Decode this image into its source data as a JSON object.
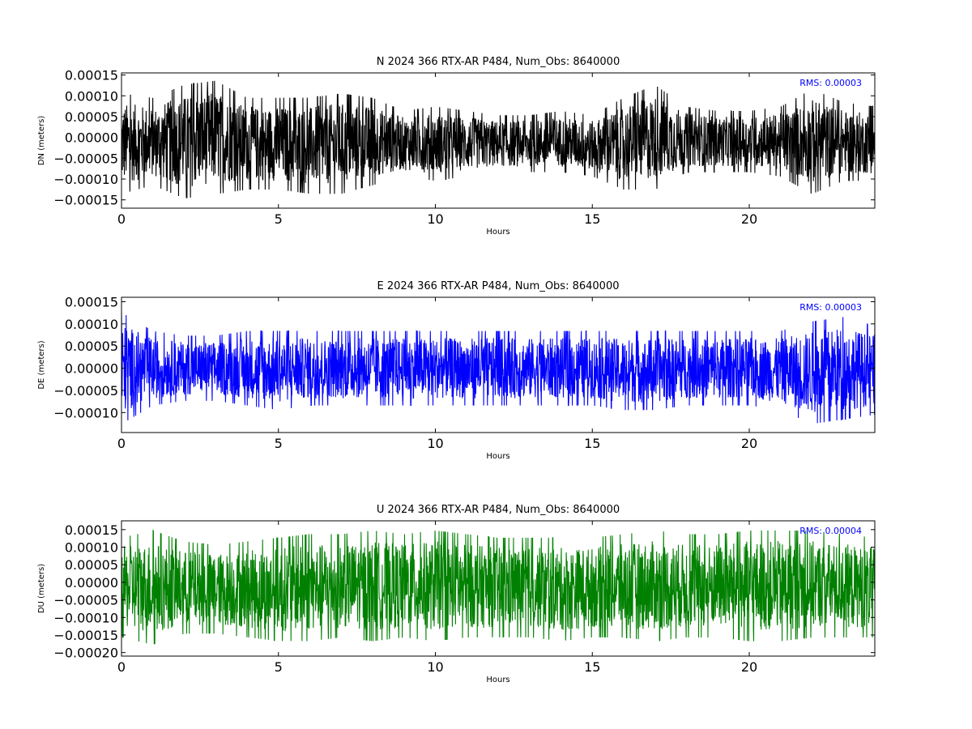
{
  "chart_data": [
    {
      "type": "line",
      "title": "N 2024 366 RTX-AR  P484, Num_Obs: 8640000",
      "xlabel": "Hours",
      "ylabel": "DN (meters)",
      "xlim": [
        0,
        24
      ],
      "ylim": [
        -0.00017,
        0.000155
      ],
      "xticks": [
        0,
        5,
        10,
        15,
        20
      ],
      "yticks": [
        -0.00015,
        -0.0001,
        -5e-05,
        0.0,
        5e-05,
        0.0001,
        0.00015
      ],
      "ytick_labels": [
        "−0.00015",
        "−0.00010",
        "−0.00005",
        "0.00000",
        "0.00005",
        "0.00010",
        "0.00015"
      ],
      "color": "#000000",
      "annotation": "RMS:  0.00003",
      "annotation_color": "#0000ff",
      "series": [
        {
          "x": [
            0,
            1,
            2,
            3,
            4,
            5,
            6,
            7,
            8,
            9,
            10,
            11,
            12,
            13,
            14,
            15,
            16,
            17,
            18,
            19,
            20,
            21,
            22,
            23,
            24
          ],
          "upper": [
            0.0001,
            9e-05,
            0.00012,
            0.00013,
            9e-05,
            9e-05,
            9e-05,
            0.0001,
            9e-05,
            6e-05,
            7e-05,
            6e-05,
            5e-05,
            5e-05,
            6e-05,
            5e-05,
            9e-05,
            0.00012,
            7e-05,
            6e-05,
            6e-05,
            7e-05,
            0.00011,
            8e-05,
            7e-05
          ],
          "lower": [
            -0.00013,
            -0.00011,
            -0.00014,
            -0.00013,
            -0.00012,
            -0.00012,
            -0.00013,
            -0.00013,
            -0.00011,
            -9e-05,
            -0.0001,
            -9e-05,
            -8e-05,
            -8e-05,
            -8e-05,
            -9e-05,
            -0.00012,
            -0.00012,
            -8e-05,
            -8e-05,
            -8e-05,
            -9e-05,
            -0.00013,
            -0.0001,
            -0.0001
          ]
        }
      ]
    },
    {
      "type": "line",
      "title": "E 2024 366 RTX-AR  P484, Num_Obs: 8640000",
      "xlabel": "Hours",
      "ylabel": "DE (meters)",
      "xlim": [
        0,
        24
      ],
      "ylim": [
        -0.000145,
        0.00016
      ],
      "xticks": [
        0,
        5,
        10,
        15,
        20
      ],
      "yticks": [
        -0.0001,
        -5e-05,
        0.0,
        5e-05,
        0.0001,
        0.00015
      ],
      "ytick_labels": [
        "−0.00010",
        "−0.00005",
        "0.00000",
        "0.00005",
        "0.00010",
        "0.00015"
      ],
      "color": "#0000ff",
      "annotation": "RMS:  0.00003",
      "annotation_color": "#0000ff",
      "series": [
        {
          "x": [
            0,
            1,
            2,
            3,
            4,
            5,
            6,
            7,
            8,
            9,
            10,
            11,
            12,
            13,
            14,
            15,
            16,
            17,
            18,
            19,
            20,
            21,
            22,
            23,
            24
          ],
          "upper": [
            0.00012,
            8e-05,
            7e-05,
            7e-05,
            8e-05,
            8e-05,
            8e-05,
            8e-05,
            8e-05,
            8e-05,
            8e-05,
            8e-05,
            8e-05,
            8e-05,
            8e-05,
            8e-05,
            8e-05,
            8e-05,
            8e-05,
            8e-05,
            8e-05,
            8e-05,
            0.0001,
            0.00011,
            9e-05
          ],
          "lower": [
            -0.00012,
            -8e-05,
            -7e-05,
            -7e-05,
            -8e-05,
            -9e-05,
            -8e-05,
            -8e-05,
            -8e-05,
            -8e-05,
            -8e-05,
            -8e-05,
            -8e-05,
            -8e-05,
            -8e-05,
            -8e-05,
            -9e-05,
            -9e-05,
            -8e-05,
            -8e-05,
            -8e-05,
            -9e-05,
            -0.00012,
            -0.00011,
            -0.0001
          ]
        }
      ]
    },
    {
      "type": "line",
      "title": "U 2024 366 RTX-AR  P484, Num_Obs: 8640000",
      "xlabel": "Hours",
      "ylabel": "DU (meters)",
      "xlim": [
        0,
        24
      ],
      "ylim": [
        -0.00021,
        0.000175
      ],
      "xticks": [
        0,
        5,
        10,
        15,
        20
      ],
      "yticks": [
        -0.0002,
        -0.00015,
        -0.0001,
        -5e-05,
        0.0,
        5e-05,
        0.0001,
        0.00015
      ],
      "ytick_labels": [
        "−0.00020",
        "−0.00015",
        "−0.00010",
        "−0.00005",
        "0.00000",
        "0.00005",
        "0.00010",
        "0.00015"
      ],
      "color": "#008000",
      "annotation": "RMS:  0.00004",
      "annotation_color": "#0000ff",
      "series": [
        {
          "x": [
            0,
            1,
            2,
            3,
            4,
            5,
            6,
            7,
            8,
            9,
            10,
            11,
            12,
            13,
            14,
            15,
            16,
            17,
            18,
            19,
            20,
            21,
            22,
            23,
            24
          ],
          "upper": [
            0.00012,
            0.00014,
            0.00011,
            0.0001,
            0.00011,
            0.00012,
            0.00013,
            0.00013,
            0.00014,
            0.00013,
            0.00014,
            0.00013,
            0.00012,
            0.00012,
            0.00012,
            0.00012,
            0.00013,
            0.00014,
            0.00013,
            0.00013,
            0.00014,
            0.00014,
            0.00014,
            0.00013,
            0.00012
          ],
          "lower": [
            -0.00015,
            -0.00017,
            -0.00014,
            -0.00014,
            -0.00015,
            -0.00016,
            -0.00016,
            -0.00015,
            -0.00016,
            -0.00015,
            -0.00016,
            -0.00015,
            -0.00015,
            -0.00015,
            -0.00016,
            -0.00015,
            -0.00015,
            -0.00016,
            -0.00015,
            -0.00015,
            -0.00016,
            -0.00016,
            -0.00015,
            -0.00015,
            -0.00015
          ]
        }
      ]
    }
  ]
}
